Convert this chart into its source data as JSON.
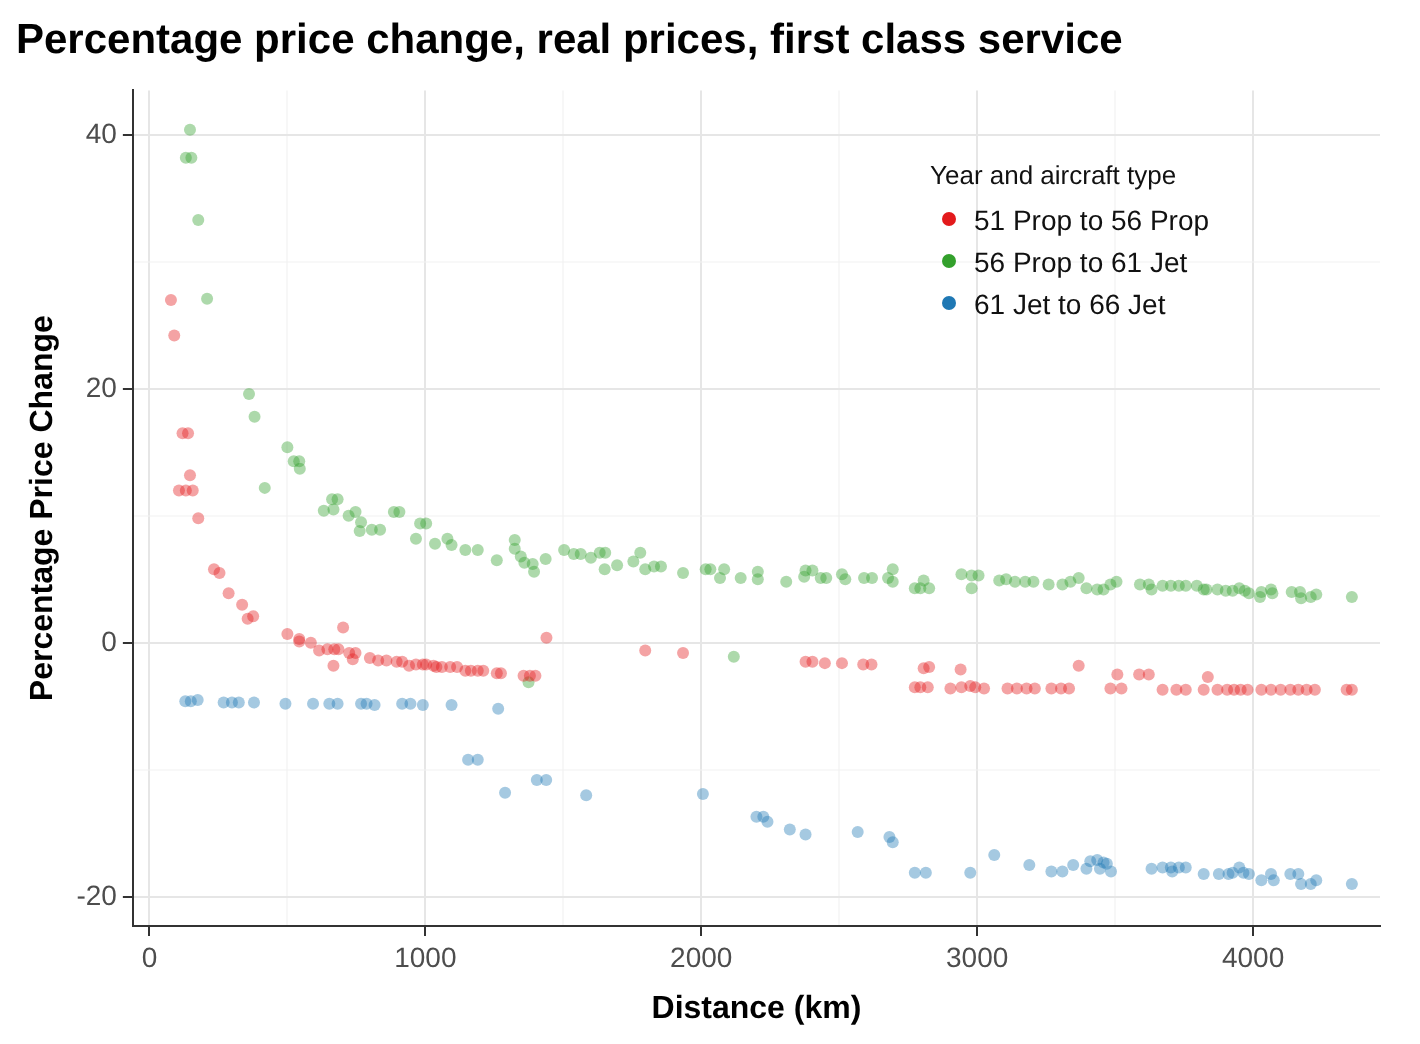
{
  "chart_data": {
    "type": "scatter",
    "title": "Percentage price change, real prices, first class service",
    "xlabel": "Distance (km)",
    "ylabel": "Percentage Price Change",
    "legend_title": "Year and aircraft type",
    "legend": "top right",
    "grid": true,
    "marker": "circle",
    "xlim": [
      -60,
      4460
    ],
    "ylim": [
      -22.3,
      43.5
    ],
    "xticks": [
      0,
      {
        "value": 500,
        "label": null
      },
      1000,
      {
        "value": 1500,
        "label": null
      },
      2000,
      {
        "value": 2500,
        "label": null
      },
      3000,
      {
        "value": 3500,
        "label": null
      },
      4000
    ],
    "yticks": [
      -20,
      {
        "value": -10,
        "label": null
      },
      0,
      {
        "value": 10,
        "label": null
      },
      20,
      {
        "value": 30,
        "label": null
      },
      40
    ],
    "series": [
      {
        "name": "51 Prop to 56 Prop",
        "color": "#e31a1c",
        "x": [
          78,
          90,
          120,
          140,
          107,
          132,
          157,
          147,
          177,
          234,
          254,
          287,
          336,
          356,
          376,
          500,
          543,
          543,
          585,
          615,
          645,
          670,
          685,
          702,
          667,
          724,
          747,
          737,
          799,
          829,
          859,
          896,
          916,
          941,
          966,
          991,
          1003,
          1030,
          1040,
          1060,
          1090,
          1115,
          1145,
          1165,
          1190,
          1210,
          1259,
          1274,
          1356,
          1379,
          1399,
          1439,
          1797,
          1934,
          2378,
          2403,
          2448,
          2510,
          2587,
          2617,
          2806,
          2826,
          2774,
          2794,
          2821,
          2903,
          2943,
          2975,
          2993,
          2940,
          3025,
          3110,
          3144,
          3179,
          3209,
          3269,
          3304,
          3333,
          3368,
          3483,
          3523,
          3508,
          3587,
          3622,
          3672,
          3722,
          3756,
          3821,
          3871,
          3836,
          3906,
          3931,
          3955,
          3980,
          4030,
          4065,
          4100,
          4135,
          4164,
          4194,
          4224,
          4339,
          4358
        ],
        "values": [
          27.0,
          24.2,
          16.5,
          16.5,
          12.0,
          12.0,
          12.0,
          13.2,
          9.8,
          5.8,
          5.5,
          3.9,
          3.0,
          1.9,
          2.1,
          0.7,
          0.3,
          0.1,
          0.0,
          -0.6,
          -0.5,
          -0.5,
          -0.5,
          1.2,
          -1.8,
          -0.8,
          -0.8,
          -1.3,
          -1.2,
          -1.4,
          -1.4,
          -1.5,
          -1.5,
          -1.8,
          -1.7,
          -1.7,
          -1.7,
          -1.8,
          -1.9,
          -1.9,
          -1.9,
          -1.9,
          -2.2,
          -2.2,
          -2.2,
          -2.2,
          -2.4,
          -2.4,
          -2.6,
          -2.6,
          -2.6,
          0.4,
          -0.6,
          -0.8,
          -1.5,
          -1.5,
          -1.6,
          -1.6,
          -1.7,
          -1.7,
          -2.0,
          -1.9,
          -3.5,
          -3.5,
          -3.5,
          -3.6,
          -3.5,
          -3.4,
          -3.5,
          -2.1,
          -3.6,
          -3.6,
          -3.6,
          -3.6,
          -3.6,
          -3.6,
          -3.6,
          -3.6,
          -1.8,
          -3.6,
          -3.6,
          -2.5,
          -2.5,
          -2.5,
          -3.7,
          -3.7,
          -3.7,
          -3.7,
          -3.7,
          -2.7,
          -3.7,
          -3.7,
          -3.7,
          -3.7,
          -3.7,
          -3.7,
          -3.7,
          -3.7,
          -3.7,
          -3.7,
          -3.7,
          -3.7,
          -3.7
        ]
      },
      {
        "name": "56 Prop to 61 Jet",
        "color": "#33a02c",
        "x": [
          147,
          132,
          152,
          177,
          209,
          361,
          381,
          418,
          500,
          523,
          543,
          545,
          632,
          662,
          682,
          667,
          722,
          747,
          762,
          767,
          806,
          836,
          886,
          906,
          966,
          981,
          1003,
          1035,
          1080,
          1095,
          1145,
          1190,
          1259,
          1324,
          1324,
          1346,
          1359,
          1389,
          1394,
          1436,
          1503,
          1538,
          1563,
          1600,
          1632,
          1652,
          1650,
          1695,
          1754,
          1779,
          1797,
          1829,
          1854,
          1934,
          2016,
          2033,
          2068,
          2083,
          2143,
          2205,
          2205,
          2118,
          1374,
          2308,
          2378,
          2403,
          2373,
          2433,
          2453,
          2510,
          2522,
          2590,
          2619,
          2677,
          2694,
          2694,
          2774,
          2794,
          2826,
          2806,
          2943,
          2980,
          2980,
          3005,
          3080,
          3105,
          3137,
          3174,
          3204,
          3259,
          3309,
          3338,
          3368,
          3396,
          3435,
          3458,
          3483,
          3505,
          3590,
          3622,
          3632,
          3672,
          3702,
          3731,
          3756,
          3796,
          3821,
          3831,
          3871,
          3901,
          3926,
          3950,
          3970,
          3985,
          4025,
          4030,
          4065,
          4070,
          4140,
          4170,
          4174,
          4209,
          4229,
          4358
        ],
        "values": [
          40.4,
          38.2,
          38.2,
          33.3,
          27.1,
          19.6,
          17.8,
          12.2,
          15.4,
          14.3,
          14.3,
          13.7,
          10.4,
          11.3,
          11.3,
          10.5,
          10.0,
          10.3,
          8.8,
          9.5,
          8.9,
          8.9,
          10.3,
          10.3,
          8.2,
          9.4,
          9.4,
          7.8,
          8.2,
          7.7,
          7.3,
          7.3,
          6.5,
          8.1,
          7.4,
          6.8,
          6.3,
          6.2,
          5.6,
          6.6,
          7.3,
          7.0,
          7.0,
          6.7,
          7.1,
          7.1,
          5.8,
          6.1,
          6.4,
          7.1,
          5.8,
          6.0,
          6.0,
          5.5,
          5.8,
          5.8,
          5.1,
          5.8,
          5.1,
          5.6,
          5.0,
          -1.1,
          -3.1,
          4.8,
          5.7,
          5.7,
          5.2,
          5.1,
          5.1,
          5.4,
          5.0,
          5.1,
          5.1,
          5.1,
          5.8,
          4.8,
          4.3,
          4.3,
          4.3,
          4.9,
          5.4,
          4.3,
          5.3,
          5.3,
          4.9,
          5.0,
          4.8,
          4.8,
          4.8,
          4.6,
          4.6,
          4.8,
          5.1,
          4.3,
          4.2,
          4.2,
          4.6,
          4.8,
          4.6,
          4.6,
          4.2,
          4.5,
          4.5,
          4.5,
          4.5,
          4.5,
          4.2,
          4.2,
          4.2,
          4.1,
          4.1,
          4.3,
          4.1,
          3.9,
          3.6,
          4.0,
          4.2,
          3.9,
          4.0,
          4.0,
          3.5,
          3.6,
          3.8,
          3.6
        ]
      },
      {
        "name": "61 Jet to 66 Jet",
        "color": "#1f78b4",
        "x": [
          130,
          150,
          175,
          269,
          299,
          324,
          379,
          493,
          593,
          652,
          682,
          767,
          787,
          816,
          916,
          946,
          991,
          1095,
          1264,
          1155,
          1190,
          1289,
          1404,
          1438,
          1583,
          2006,
          2200,
          2225,
          2240,
          2321,
          2378,
          2567,
          2682,
          2694,
          2774,
          2814,
          2975,
          3062,
          3189,
          3269,
          3309,
          3348,
          3396,
          3410,
          3435,
          3458,
          3470,
          3445,
          3485,
          3632,
          3672,
          3702,
          3707,
          3731,
          3756,
          3821,
          3876,
          3911,
          3926,
          3950,
          3965,
          3985,
          4030,
          4065,
          4075,
          4135,
          4164,
          4174,
          4209,
          4229,
          4358
        ],
        "values": [
          -4.6,
          -4.6,
          -4.5,
          -4.7,
          -4.7,
          -4.7,
          -4.7,
          -4.8,
          -4.8,
          -4.8,
          -4.8,
          -4.8,
          -4.8,
          -4.9,
          -4.8,
          -4.8,
          -4.9,
          -4.9,
          -5.2,
          -9.2,
          -9.2,
          -11.8,
          -10.8,
          -10.8,
          -12.0,
          -11.9,
          -13.7,
          -13.7,
          -14.1,
          -14.7,
          -15.1,
          -14.9,
          -15.3,
          -15.7,
          -18.1,
          -18.1,
          -18.1,
          -16.7,
          -17.5,
          -18.0,
          -18.0,
          -17.5,
          -17.8,
          -17.2,
          -17.1,
          -17.3,
          -17.4,
          -17.8,
          -18.0,
          -17.8,
          -17.7,
          -17.7,
          -18.0,
          -17.7,
          -17.7,
          -18.2,
          -18.2,
          -18.2,
          -18.1,
          -17.7,
          -18.1,
          -18.2,
          -18.7,
          -18.2,
          -18.7,
          -18.2,
          -18.2,
          -19.0,
          -19.0,
          -18.7,
          -19.0
        ]
      }
    ]
  }
}
